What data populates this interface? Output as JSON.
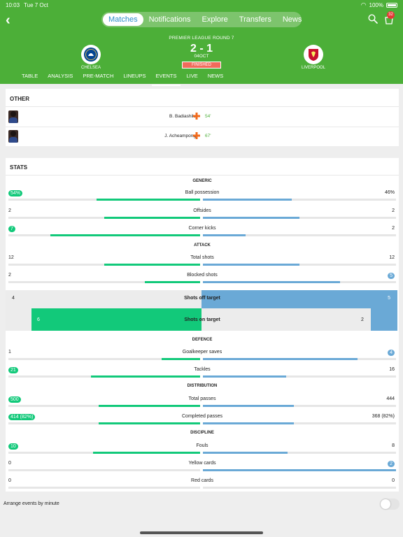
{
  "status_bar": {
    "time": "10:03",
    "date": "Tue 7 Oct",
    "battery": "100%"
  },
  "nav": {
    "tabs": [
      {
        "label": "Matches",
        "active": true
      },
      {
        "label": "Notifications",
        "active": false
      },
      {
        "label": "Explore",
        "active": false
      },
      {
        "label": "Transfers",
        "active": false
      },
      {
        "label": "News",
        "active": false
      }
    ],
    "notification_count": "32"
  },
  "match": {
    "round": "PREMIER LEAGUE ROUND 7",
    "score": "2 - 1",
    "date": "04OCT",
    "status": "FINISHED",
    "home_team": "CHELSEA",
    "away_team": "LIVERPOOL",
    "home_color": "#034694",
    "away_color": "#c8102e"
  },
  "subtabs": [
    {
      "label": "TABLE",
      "active": false
    },
    {
      "label": "ANALYSIS",
      "active": false
    },
    {
      "label": "PRE-MATCH",
      "active": false
    },
    {
      "label": "LINEUPS",
      "active": false
    },
    {
      "label": "EVENTS",
      "active": true
    },
    {
      "label": "LIVE",
      "active": false
    },
    {
      "label": "NEWS",
      "active": false
    }
  ],
  "other": {
    "title": "OTHER",
    "events": [
      {
        "player": "B. Badiashile",
        "minute": "54'",
        "icon": "injury-cross-icon"
      },
      {
        "player": "J. Acheampong",
        "minute": "67'",
        "icon": "injury-cross-icon"
      }
    ]
  },
  "stats": {
    "title": "STATS",
    "sections": {
      "generic": "GENERIC",
      "attack": "ATTACK",
      "defence": "DEFENCE",
      "distribution": "DISTRIBUTION",
      "discipline": "DISCIPLINE"
    },
    "ball_possession": {
      "label": "Ball possession",
      "home": "54%",
      "away": "46%",
      "home_frac": 0.54,
      "away_frac": 0.46,
      "leader": "home"
    },
    "offsides": {
      "label": "Offsides",
      "home": "2",
      "away": "2",
      "home_frac": 0.5,
      "away_frac": 0.5,
      "leader": "none"
    },
    "corner_kicks": {
      "label": "Corner kicks",
      "home": "7",
      "away": "2",
      "home_frac": 0.78,
      "away_frac": 0.22,
      "leader": "home"
    },
    "total_shots": {
      "label": "Total shots",
      "home": "12",
      "away": "12",
      "home_frac": 0.5,
      "away_frac": 0.5,
      "leader": "none"
    },
    "blocked_shots": {
      "label": "Blocked shots",
      "home": "2",
      "away": "5",
      "home_frac": 0.29,
      "away_frac": 0.71,
      "leader": "away"
    },
    "shots_off_target": {
      "label": "Shots off target",
      "home": "4",
      "away": "5"
    },
    "shots_on_target": {
      "label": "Shots on target",
      "home": "6",
      "away": "2"
    },
    "goalkeeper_saves": {
      "label": "Goalkeeper saves",
      "home": "1",
      "away": "4",
      "home_frac": 0.2,
      "away_frac": 0.8,
      "leader": "away"
    },
    "tackles": {
      "label": "Tackles",
      "home": "21",
      "away": "16",
      "home_frac": 0.57,
      "away_frac": 0.43,
      "leader": "home"
    },
    "total_passes": {
      "label": "Total passes",
      "home": "500",
      "away": "444",
      "home_frac": 0.53,
      "away_frac": 0.47,
      "leader": "home"
    },
    "completed_passes": {
      "label": "Completed passes",
      "home": "414 (82%)",
      "away": "368 (82%)",
      "home_frac": 0.53,
      "away_frac": 0.47,
      "leader": "home"
    },
    "fouls": {
      "label": "Fouls",
      "home": "10",
      "away": "8",
      "home_frac": 0.56,
      "away_frac": 0.44,
      "leader": "home"
    },
    "yellow_cards": {
      "label": "Yellow cards",
      "home": "0",
      "away": "2",
      "home_frac": 0.0,
      "away_frac": 1.0,
      "leader": "away"
    },
    "red_cards": {
      "label": "Red cards",
      "home": "0",
      "away": "0",
      "home_frac": 0.0,
      "away_frac": 0.0,
      "leader": "none"
    }
  },
  "footer": {
    "label": "Arrange events by minute",
    "toggle_on": false
  },
  "colors": {
    "header_green": "#4caf38",
    "home_bar": "#12c97a",
    "away_bar": "#6aa9d6"
  }
}
